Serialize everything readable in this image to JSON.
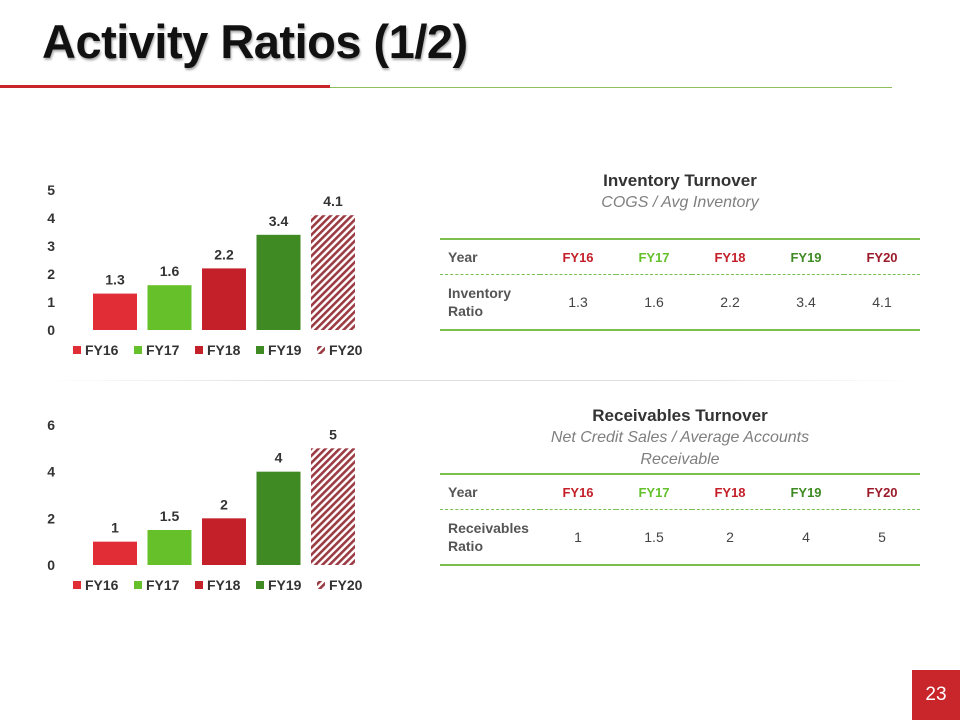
{
  "title": "Activity Ratios (1/2)",
  "page_number": "23",
  "colors": {
    "accent_red": "#c8262b",
    "accent_green": "#7cbf4e",
    "series": [
      "#e12d36",
      "#65c02a",
      "#c4202a",
      "#3f8a23",
      "#9b3b44"
    ]
  },
  "inventory": {
    "heading": "Inventory Turnover",
    "formula": "COGS / Avg Inventory",
    "table": {
      "header_label": "Year",
      "years": [
        "FY16",
        "FY17",
        "FY18",
        "FY19",
        "FY20"
      ],
      "row_label": "Inventory Ratio",
      "values": [
        "1.3",
        "1.6",
        "2.2",
        "3.4",
        "4.1"
      ]
    }
  },
  "receivables": {
    "heading": "Receivables Turnover",
    "formula": "Net Credit Sales / Average Accounts Receivable",
    "table": {
      "header_label": "Year",
      "years": [
        "FY16",
        "FY17",
        "FY18",
        "FY19",
        "FY20"
      ],
      "row_label": "Receivables Ratio",
      "values": [
        "1",
        "1.5",
        "2",
        "4",
        "5"
      ]
    }
  },
  "chart_data": [
    {
      "type": "bar",
      "categories": [
        "FY16",
        "FY17",
        "FY18",
        "FY19",
        "FY20"
      ],
      "values": [
        1.3,
        1.6,
        2.2,
        3.4,
        4.1
      ],
      "labels": [
        "1.3",
        "1.6",
        "2.2",
        "3.4",
        "4.1"
      ],
      "ylim": [
        0,
        5
      ],
      "yticks": [
        "0",
        "1",
        "2",
        "3",
        "4",
        "5"
      ],
      "grid": false,
      "legend": "bottom",
      "legend_entries": [
        "FY16",
        "FY17",
        "FY18",
        "FY19",
        "FY20"
      ],
      "hatched": [
        false,
        false,
        false,
        false,
        true
      ]
    },
    {
      "type": "bar",
      "categories": [
        "FY16",
        "FY17",
        "FY18",
        "FY19",
        "FY20"
      ],
      "values": [
        1,
        1.5,
        2,
        4,
        5
      ],
      "labels": [
        "1",
        "1.5",
        "2",
        "4",
        "5"
      ],
      "ylim": [
        0,
        6
      ],
      "yticks": [
        "0",
        "2",
        "4",
        "6"
      ],
      "grid": false,
      "legend": "bottom",
      "legend_entries": [
        "FY16",
        "FY17",
        "FY18",
        "FY19",
        "FY20"
      ],
      "hatched": [
        false,
        false,
        false,
        false,
        true
      ]
    }
  ]
}
